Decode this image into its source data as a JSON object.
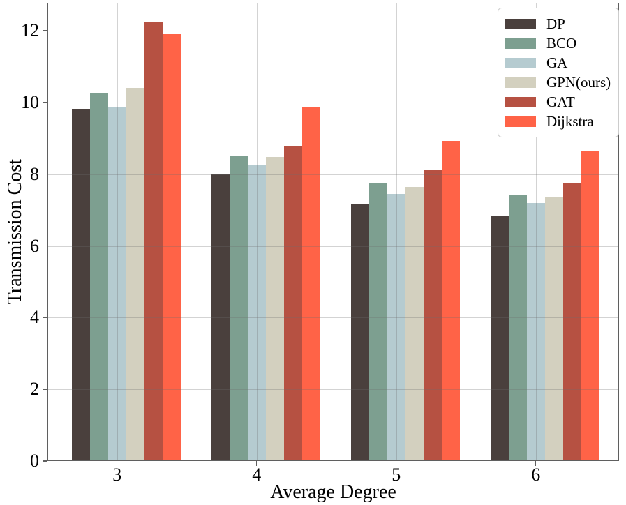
{
  "figure": {
    "background": "#ffffff"
  },
  "chart_data": {
    "type": "bar",
    "title": "",
    "xlabel": "Average Degree",
    "ylabel": "Transmission Cost",
    "categories": [
      "3",
      "4",
      "5",
      "6"
    ],
    "series": [
      {
        "name": "DP",
        "color": "#4a403d",
        "values": [
          9.83,
          8.0,
          7.18,
          6.83
        ]
      },
      {
        "name": "BCO",
        "color": "#7d9f90",
        "values": [
          10.27,
          8.5,
          7.74,
          7.41
        ]
      },
      {
        "name": "GA",
        "color": "#b5cbd0",
        "values": [
          9.87,
          8.25,
          7.45,
          7.2
        ]
      },
      {
        "name": "GPN(ours)",
        "color": "#d3d0bf",
        "values": [
          10.4,
          8.49,
          7.65,
          7.35
        ]
      },
      {
        "name": "GAT",
        "color": "#b65142",
        "values": [
          12.24,
          8.8,
          8.11,
          7.75
        ]
      },
      {
        "name": "Dijkstra",
        "color": "#ff6347",
        "values": [
          11.91,
          9.86,
          8.93,
          8.64
        ]
      }
    ],
    "ylim": [
      0,
      12.78
    ],
    "yticks": [
      0,
      2,
      4,
      6,
      8,
      10,
      12
    ],
    "grid": true,
    "grid_color": "#cccccc",
    "spine_color": "#5f5f5f",
    "legend_position": "upper right"
  }
}
